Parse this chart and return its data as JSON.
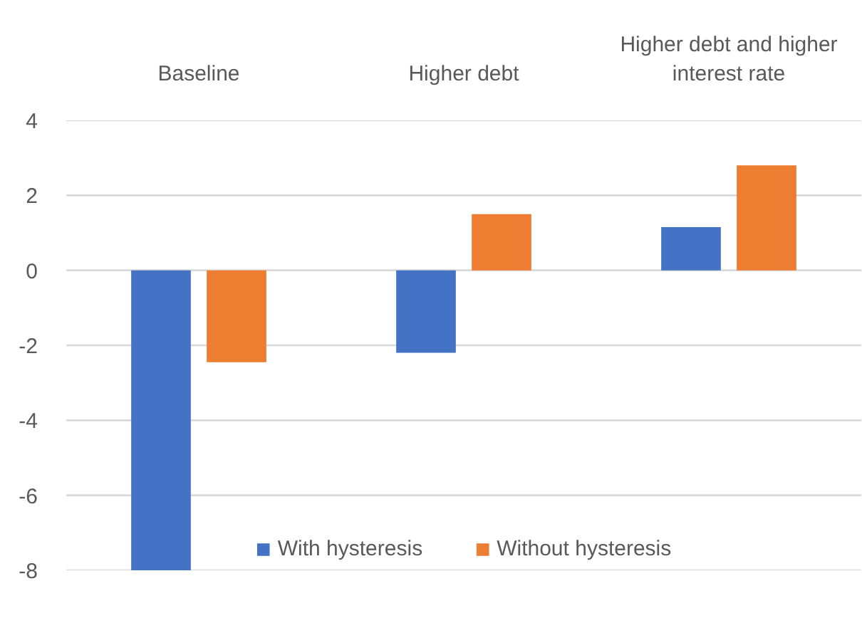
{
  "chart_data": {
    "type": "bar",
    "categories": [
      "Baseline",
      "Higher debt",
      "Higher debt and higher interest rate"
    ],
    "series": [
      {
        "name": "With hysteresis",
        "color": "#4472c4",
        "values": [
          -8,
          -2.2,
          1.15
        ]
      },
      {
        "name": "Without hysteresis",
        "color": "#ed7d31",
        "values": [
          -2.45,
          1.5,
          2.8
        ]
      }
    ],
    "ylim": [
      -8,
      4
    ],
    "yticks": [
      -8,
      -6,
      -4,
      -2,
      0,
      2,
      4
    ],
    "grid": "y",
    "legend": "bottom"
  }
}
